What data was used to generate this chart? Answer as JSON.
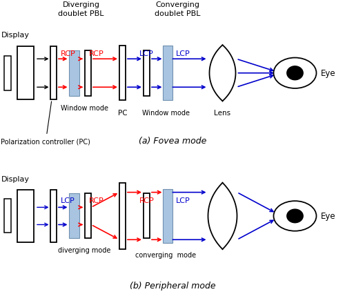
{
  "title_a": "(a) Fovea mode",
  "title_b": "(b) Peripheral mode",
  "header_div": "Diverging\ndoublet PBL",
  "header_conv": "Converging\ndoublet PBL",
  "label_display": "Display",
  "label_pc_full": "Polarization controller (PC)",
  "label_pc": "PC",
  "label_window_mode_div": "Window mode",
  "label_window_mode_conv": "Window mode",
  "label_lens": "Lens",
  "label_eye": "Eye",
  "label_diverging_mode": "diverging mode",
  "label_converging_mode": "converging  mode",
  "rcp_color": "#ff0000",
  "lcp_color": "#0000cc",
  "blue_fill": "#a8c4e0",
  "black": "#000000",
  "bg": "#ffffff"
}
